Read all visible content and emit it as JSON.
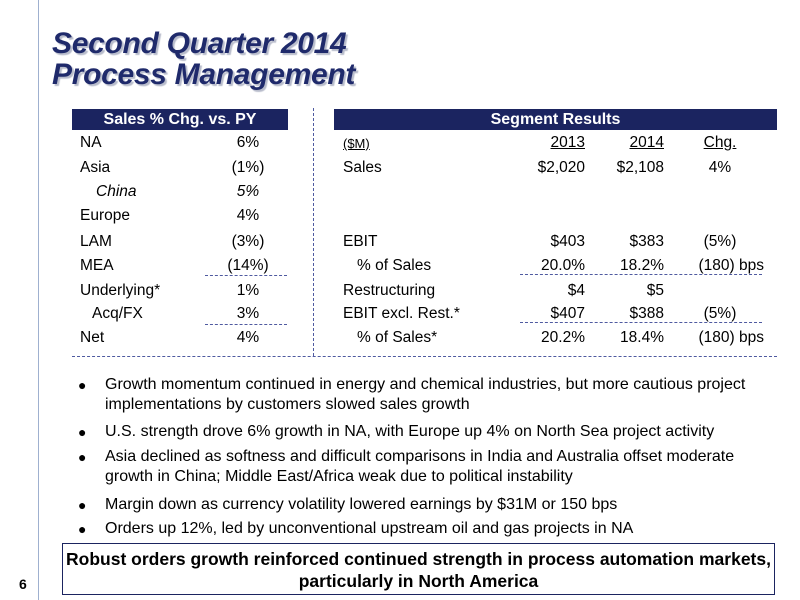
{
  "title": {
    "line1": "Second Quarter 2014",
    "line2": "Process Management"
  },
  "left_table": {
    "header": "Sales % Chg. vs. PY",
    "rows": [
      {
        "label": "NA",
        "value": "6%"
      },
      {
        "label": "Asia",
        "value": "(1%)"
      },
      {
        "label": "China",
        "value": "5%"
      },
      {
        "label": "Europe",
        "value": "4%"
      },
      {
        "label": "LAM",
        "value": "(3%)"
      },
      {
        "label": "MEA",
        "value": "(14%)"
      },
      {
        "label": "Underlying*",
        "value": "1%"
      },
      {
        "label": "Acq/FX",
        "value": "3%"
      },
      {
        "label": "Net",
        "value": "4%"
      }
    ]
  },
  "right_table": {
    "header": "Segment Results",
    "units": "($M)",
    "col_2013": "2013",
    "col_2014": "2014",
    "col_chg": "Chg.",
    "rows": [
      {
        "label": "Sales",
        "v2013": "$2,020",
        "v2014": "$2,108",
        "chg": "4%"
      },
      {
        "label": "EBIT",
        "v2013": "$403",
        "v2014": "$383",
        "chg": "(5%)"
      },
      {
        "label": "% of Sales",
        "v2013": "20.0%",
        "v2014": "18.2%",
        "chg": "(180) bps"
      },
      {
        "label": "Restructuring",
        "v2013": "$4",
        "v2014": "$5",
        "chg": ""
      },
      {
        "label": "EBIT excl. Rest.*",
        "v2013": "$407",
        "v2014": "$388",
        "chg": "(5%)"
      },
      {
        "label": "% of Sales*",
        "v2013": "20.2%",
        "v2014": "18.4%",
        "chg": "(180) bps"
      }
    ]
  },
  "bullets": [
    "Growth momentum continued in energy and chemical industries, but more cautious project implementations by customers slowed sales growth",
    "U.S. strength drove 6% growth in NA, with Europe up 4% on North Sea project activity",
    "Asia declined as softness and difficult comparisons in India and Australia offset moderate growth in China; Middle East/Africa weak due to political instability",
    "Margin down as currency volatility lowered earnings by $31M or 150 bps",
    "Orders up 12%, led by unconventional upstream oil and gas projects in NA"
  ],
  "conclusion": "Robust orders growth reinforced continued strength in process automation markets, particularly in North America",
  "page_number": "6",
  "colors": {
    "navy": "#1b2460",
    "title": "#1f2a6b",
    "dash": "#4f5aa0"
  }
}
